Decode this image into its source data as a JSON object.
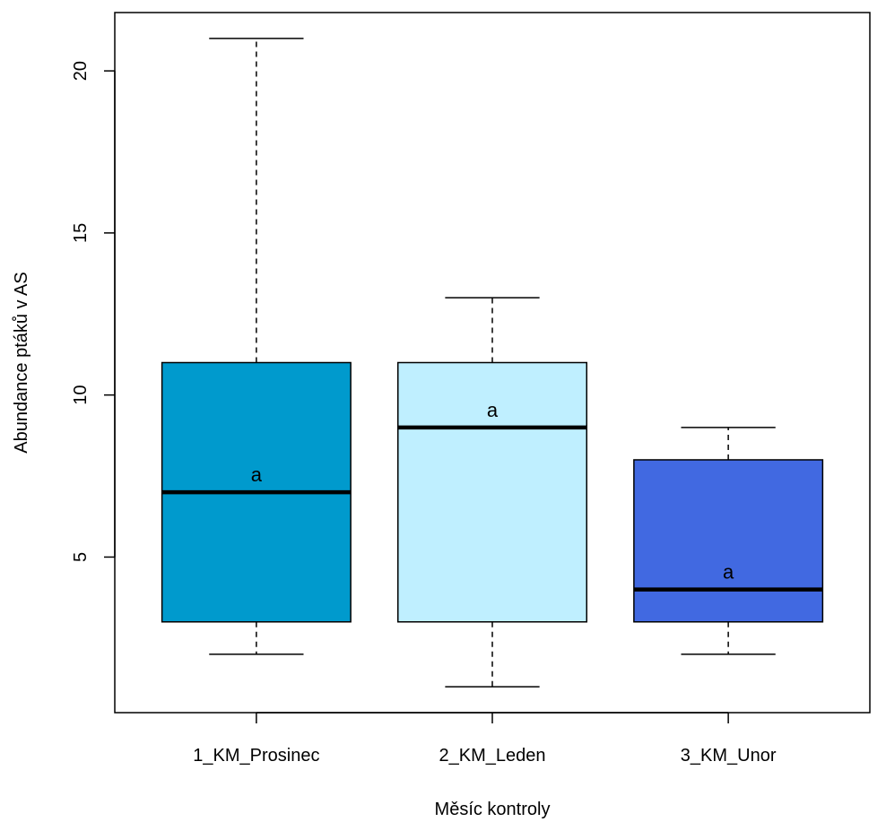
{
  "chart_data": {
    "type": "box",
    "xlabel": "Měsíc kontroly",
    "ylabel": "Abundance ptáků v AS",
    "ylim": [
      0.2,
      21.8
    ],
    "yticks": [
      5,
      10,
      15,
      20
    ],
    "grid": false,
    "legend": "none",
    "categories": [
      "1_KM_Prosinec",
      "2_KM_Leden",
      "3_KM_Unor"
    ],
    "boxes": [
      {
        "category": "1_KM_Prosinec",
        "min": 2,
        "q1": 3,
        "median": 7,
        "q3": 11,
        "max": 21,
        "color": "#009ACD",
        "letter": "a"
      },
      {
        "category": "2_KM_Leden",
        "min": 1,
        "q1": 3,
        "median": 9,
        "q3": 11,
        "max": 13,
        "color": "#BFEFFF",
        "letter": "a"
      },
      {
        "category": "3_KM_Unor",
        "min": 2,
        "q1": 3,
        "median": 4,
        "q3": 8,
        "max": 9,
        "color": "#4169E1",
        "letter": "a"
      }
    ]
  }
}
